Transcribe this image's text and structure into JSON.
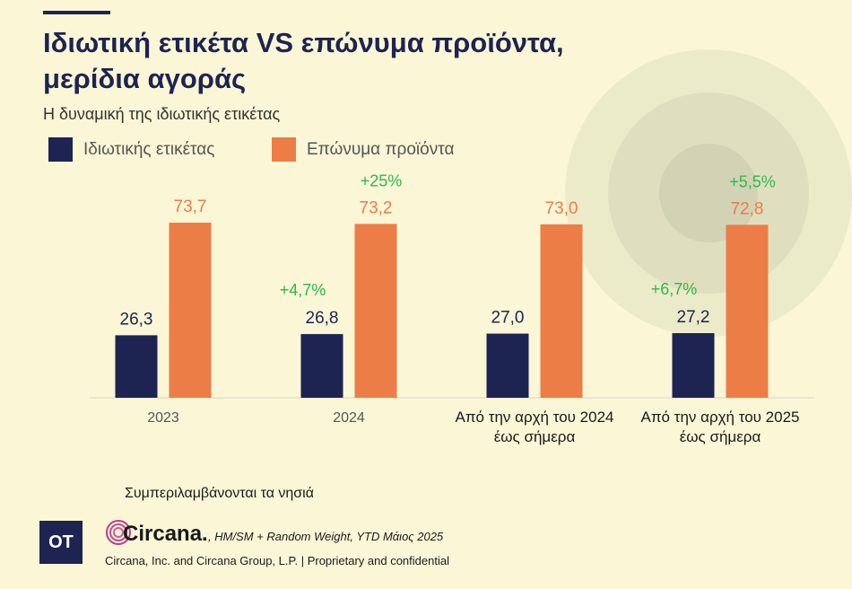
{
  "header": {
    "title_line1": "Ιδιωτική ετικέτα VS επώνυμα προϊόντα,",
    "title_line2": "μερίδια αγοράς",
    "subtitle": "Η δυναμική της ιδιωτικής ετικέτας"
  },
  "colors": {
    "private_label": "#1d2451",
    "branded": "#ec7d47",
    "growth": "#2eb84a",
    "background": "#faf6d6"
  },
  "chart_data": {
    "type": "bar",
    "title": "Ιδιωτική ετικέτα VS επώνυμα προϊόντα, μερίδια αγοράς",
    "subtitle": "Η δυναμική της ιδιωτικής ετικέτας",
    "categories": [
      [
        "2023"
      ],
      [
        "2024"
      ],
      [
        "Από την αρχή του 2024",
        "έως σήμερα"
      ],
      [
        "Από την αρχή του 2025",
        "έως σήμερα"
      ]
    ],
    "series": [
      {
        "name": "Ιδιωτικής ετικέτας",
        "values": [
          26.3,
          26.8,
          27.0,
          27.2
        ],
        "labels": [
          "26,3",
          "26,8",
          "27,0",
          "27,2"
        ],
        "color": "#1d2451",
        "growth_labels": [
          "",
          "+4,7%",
          "",
          "+6,7%"
        ]
      },
      {
        "name": "Επώνυμα προϊόντα",
        "values": [
          73.7,
          73.2,
          73.0,
          72.8
        ],
        "labels": [
          "73,7",
          "73,2",
          "73,0",
          "72,8"
        ],
        "color": "#ec7d47",
        "growth_labels": [
          "",
          "+25%",
          "",
          "+5,5%"
        ]
      }
    ],
    "ylim": [
      0,
      100
    ],
    "grid": false,
    "legend_position": "top-left",
    "xlabel": "",
    "ylabel": ""
  },
  "footer": {
    "note": "Συμπεριλαμβάνονται τα νησιά",
    "ot_logo": "OT",
    "circana_name": "Circana.",
    "source": ", HM/SM + Random Weight, YTD Μάιος 2025",
    "copyright": "Circana, Inc. and Circana Group, L.P. | Proprietary and confidential"
  }
}
